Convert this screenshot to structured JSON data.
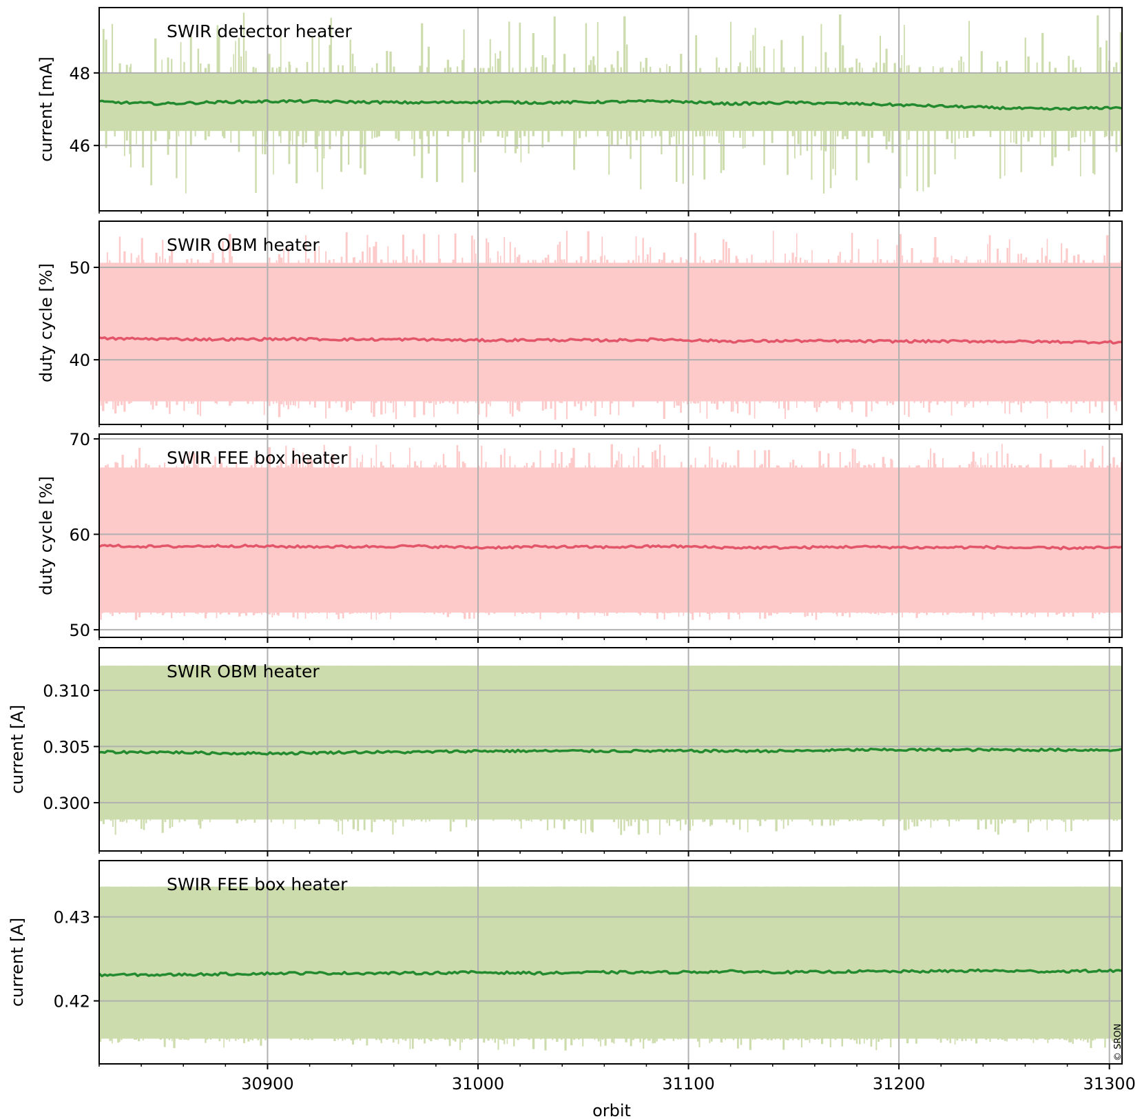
{
  "figure": {
    "xlabel": "orbit",
    "copyright": "© SRON"
  },
  "chart_data": [
    {
      "type": "line",
      "title": "SWIR detector heater",
      "ylabel": "current [mA]",
      "xlim": [
        30820,
        31306
      ],
      "ylim": [
        44.2,
        49.8
      ],
      "xticks": [
        30900,
        31000,
        31100,
        31200,
        31300
      ],
      "yticks": [
        46,
        48
      ],
      "grid": true,
      "colors": {
        "band": "#cddcad",
        "line": "#238a2f"
      },
      "band": {
        "lower": 46.4,
        "upper": 48.0,
        "min_spike": 44.6,
        "max_spike": 49.7
      },
      "series": [
        {
          "x": [
            30820,
            30850,
            30880,
            30910,
            30940,
            30970,
            31000,
            31030,
            31060,
            31090,
            31120,
            31150,
            31180,
            31210,
            31240,
            31270,
            31306
          ],
          "values": [
            47.2,
            47.15,
            47.2,
            47.22,
            47.2,
            47.18,
            47.2,
            47.18,
            47.2,
            47.22,
            47.15,
            47.18,
            47.15,
            47.1,
            47.05,
            47.0,
            47.05
          ]
        }
      ]
    },
    {
      "type": "line",
      "title": "SWIR OBM heater",
      "ylabel": "duty cycle [%]",
      "xlim": [
        30820,
        31306
      ],
      "ylim": [
        33,
        55
      ],
      "xticks": [
        30900,
        31000,
        31100,
        31200,
        31300
      ],
      "yticks": [
        40,
        50
      ],
      "grid": true,
      "colors": {
        "band": "#fdc9c9",
        "line": "#e3566a"
      },
      "band": {
        "lower": 35.5,
        "upper": 50.5,
        "min_spike": 33.5,
        "max_spike": 54.0
      },
      "series": [
        {
          "x": [
            30820,
            30850,
            30880,
            30910,
            30940,
            30970,
            31000,
            31030,
            31060,
            31090,
            31120,
            31150,
            31180,
            31210,
            31240,
            31270,
            31306
          ],
          "values": [
            42.3,
            42.25,
            42.2,
            42.25,
            42.2,
            42.2,
            42.1,
            42.15,
            42.1,
            42.2,
            42.0,
            42.05,
            42.0,
            42.0,
            42.0,
            41.95,
            41.9
          ]
        }
      ]
    },
    {
      "type": "line",
      "title": "SWIR FEE box heater",
      "ylabel": "duty cycle [%]",
      "xlim": [
        30820,
        31306
      ],
      "ylim": [
        49.2,
        70.5
      ],
      "xticks": [
        30900,
        31000,
        31100,
        31200,
        31300
      ],
      "yticks": [
        50,
        60,
        70
      ],
      "grid": true,
      "colors": {
        "band": "#fdc9c9",
        "line": "#e3566a"
      },
      "band": {
        "lower": 51.8,
        "upper": 67.0,
        "min_spike": 51.0,
        "max_spike": 69.5
      },
      "series": [
        {
          "x": [
            30820,
            30850,
            30880,
            30910,
            30940,
            30970,
            31000,
            31030,
            31060,
            31090,
            31120,
            31150,
            31180,
            31210,
            31240,
            31270,
            31306
          ],
          "values": [
            58.8,
            58.7,
            58.8,
            58.7,
            58.7,
            58.75,
            58.6,
            58.7,
            58.65,
            58.75,
            58.6,
            58.6,
            58.7,
            58.6,
            58.65,
            58.55,
            58.6
          ]
        }
      ]
    },
    {
      "type": "line",
      "title": "SWIR OBM heater",
      "ylabel": "current [A]",
      "xlim": [
        30820,
        31306
      ],
      "ylim": [
        0.2957,
        0.3138
      ],
      "xticks": [
        30900,
        31000,
        31100,
        31200,
        31300
      ],
      "yticks": [
        0.3,
        0.305,
        0.31
      ],
      "ytick_labels": [
        "0.300",
        "0.305",
        "0.310"
      ],
      "grid": true,
      "colors": {
        "band": "#cddcad",
        "line": "#238a2f"
      },
      "band": {
        "lower": 0.2985,
        "upper": 0.3122,
        "min_spike": 0.2971,
        "max_spike": 0.3122
      },
      "series": [
        {
          "x": [
            30820,
            30850,
            30880,
            30910,
            30940,
            30970,
            31000,
            31030,
            31060,
            31090,
            31120,
            31150,
            31180,
            31210,
            31240,
            31270,
            31306
          ],
          "values": [
            0.3045,
            0.3045,
            0.3044,
            0.3044,
            0.3045,
            0.3045,
            0.3046,
            0.3046,
            0.3046,
            0.3046,
            0.3046,
            0.3046,
            0.3047,
            0.3047,
            0.3047,
            0.3047,
            0.3047
          ]
        }
      ]
    },
    {
      "type": "line",
      "title": "SWIR FEE box heater",
      "ylabel": "current [A]",
      "xlim": [
        30820,
        31306
      ],
      "ylim": [
        0.4125,
        0.4367
      ],
      "xticks": [
        30900,
        31000,
        31100,
        31200,
        31300
      ],
      "yticks": [
        0.42,
        0.43
      ],
      "ytick_labels": [
        "0.42",
        "0.43"
      ],
      "grid": true,
      "colors": {
        "band": "#cddcad",
        "line": "#238a2f"
      },
      "band": {
        "lower": 0.4155,
        "upper": 0.4336,
        "min_spike": 0.414,
        "max_spike": 0.4336
      },
      "series": [
        {
          "x": [
            30820,
            30850,
            30880,
            30910,
            30940,
            30970,
            31000,
            31030,
            31060,
            31090,
            31120,
            31150,
            31180,
            31210,
            31240,
            31270,
            31306
          ],
          "values": [
            0.4231,
            0.4231,
            0.4232,
            0.4233,
            0.4233,
            0.4233,
            0.4234,
            0.4233,
            0.4234,
            0.4234,
            0.4235,
            0.4234,
            0.4235,
            0.4235,
            0.4236,
            0.4235,
            0.4236
          ]
        }
      ]
    }
  ]
}
